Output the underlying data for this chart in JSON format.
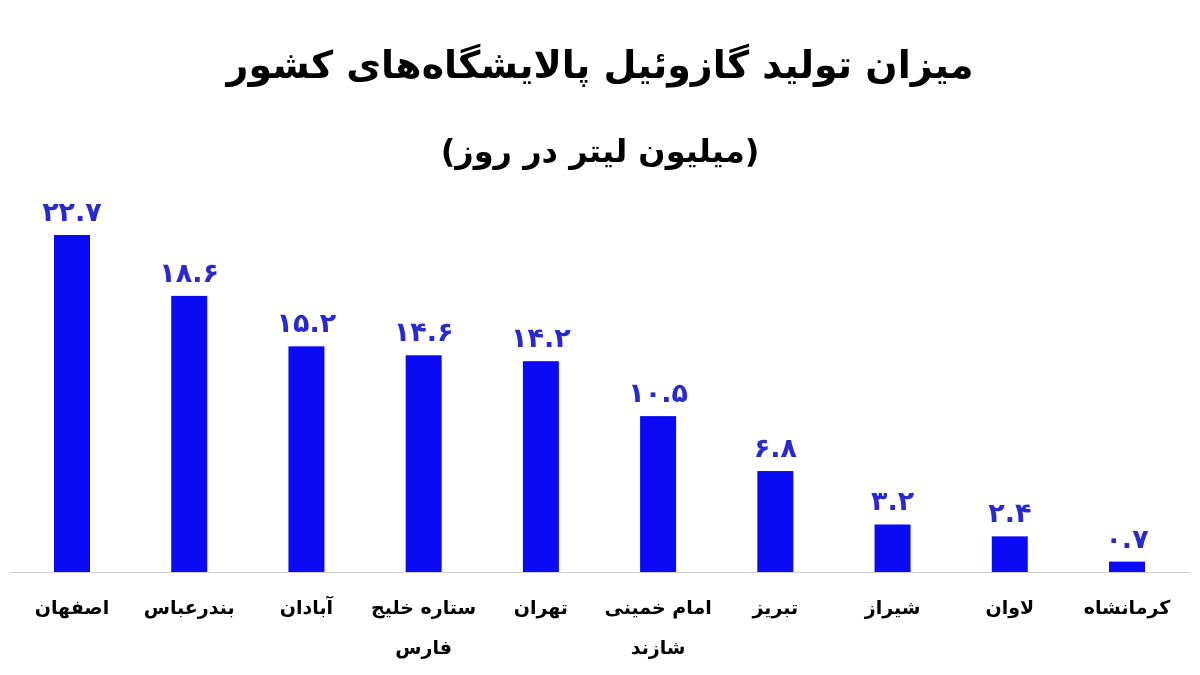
{
  "chart_data": {
    "type": "bar",
    "title": "میزان تولید گازوئیل پالایشگاه‌های کشور",
    "subtitle": "(میلیون لیتر در روز)",
    "categories": [
      "اصفهان",
      "بندرعباس",
      "آبادان",
      "ستاره خلیج فارس",
      "تهران",
      "امام خمینی شازند",
      "تبریز",
      "شیراز",
      "لاوان",
      "کرمانشاه"
    ],
    "values": [
      22.7,
      18.6,
      15.2,
      14.6,
      14.2,
      10.5,
      6.8,
      3.2,
      2.4,
      0.7
    ],
    "value_labels": [
      "۲۲.۷",
      "۱۸.۶",
      "۱۵.۲",
      "۱۴.۶",
      "۱۴.۲",
      "۱۰.۵",
      "۶.۸",
      "۳.۲",
      "۲.۴",
      "۰.۷"
    ],
    "color": "#0a0af5"
  }
}
